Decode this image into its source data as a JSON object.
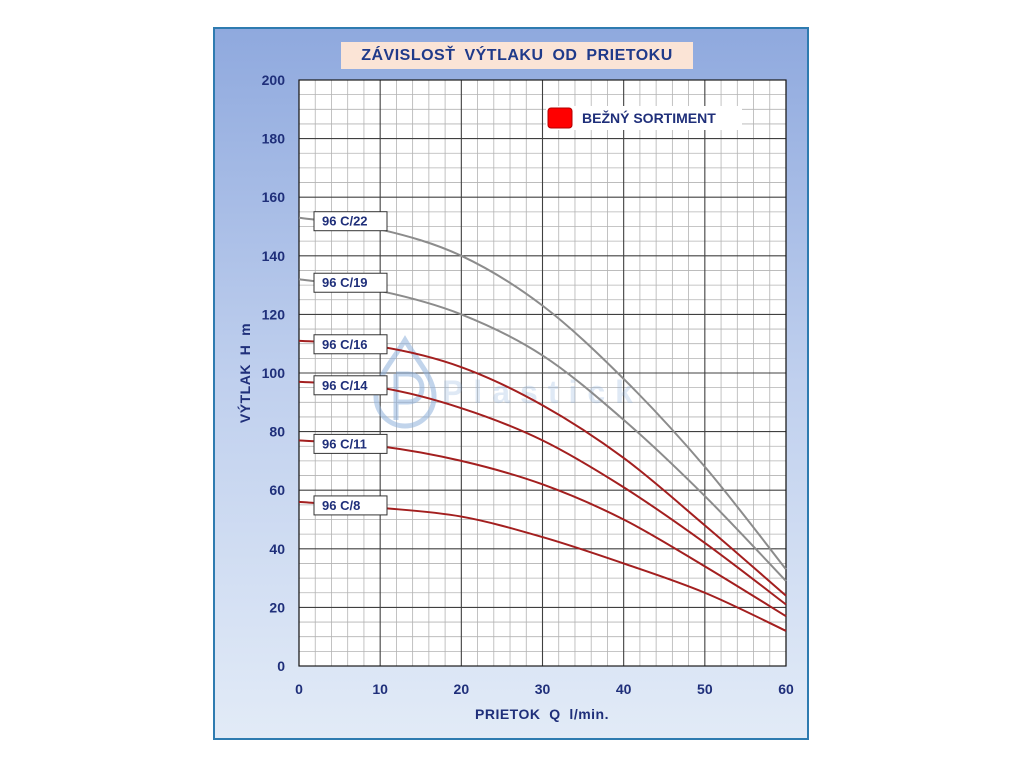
{
  "chart_data": {
    "type": "line",
    "title": "ZÁVISLOSŤ  VÝTLAKU  OD  PRIETOKU",
    "xlabel": "PRIETOK  Q  l/min.",
    "ylabel": "VÝTLAK  H  m",
    "xlim": [
      0,
      60
    ],
    "ylim": [
      0,
      200
    ],
    "x_ticks": [
      0,
      10,
      20,
      30,
      40,
      50,
      60
    ],
    "y_ticks": [
      0,
      20,
      40,
      60,
      80,
      100,
      120,
      140,
      160,
      180,
      200
    ],
    "grid": true,
    "legend": {
      "position": "top-right",
      "entries": [
        {
          "label": "BEŽNÝ SORTIMENT",
          "color": "#ff0000"
        }
      ]
    },
    "series": [
      {
        "name": "96 C/22",
        "color": "#8c8c8c",
        "x": [
          0,
          10,
          20,
          30,
          40,
          50,
          60
        ],
        "y": [
          153,
          149,
          140,
          123,
          98,
          68,
          33
        ]
      },
      {
        "name": "96 C/19",
        "color": "#8c8c8c",
        "x": [
          0,
          10,
          20,
          30,
          40,
          50,
          60
        ],
        "y": [
          132,
          128,
          120,
          106,
          84,
          58,
          29
        ]
      },
      {
        "name": "96 C/16",
        "color": "#a31f1f",
        "x": [
          0,
          10,
          20,
          30,
          40,
          50,
          60
        ],
        "y": [
          111,
          109,
          102,
          89,
          71,
          48,
          24
        ]
      },
      {
        "name": "96 C/14",
        "color": "#a31f1f",
        "x": [
          0,
          10,
          20,
          30,
          40,
          50,
          60
        ],
        "y": [
          97,
          95,
          88,
          77,
          61,
          42,
          21
        ]
      },
      {
        "name": "96 C/11",
        "color": "#a31f1f",
        "x": [
          0,
          10,
          20,
          30,
          40,
          50,
          60
        ],
        "y": [
          77,
          75,
          70,
          62,
          50,
          34,
          17
        ]
      },
      {
        "name": "96 C/8",
        "color": "#a31f1f",
        "x": [
          0,
          10,
          20,
          30,
          40,
          50,
          60
        ],
        "y": [
          56,
          54,
          51,
          44,
          35,
          25,
          12
        ]
      }
    ]
  },
  "watermark": {
    "text": "Plastick",
    "logo": "p-drop-logo"
  }
}
